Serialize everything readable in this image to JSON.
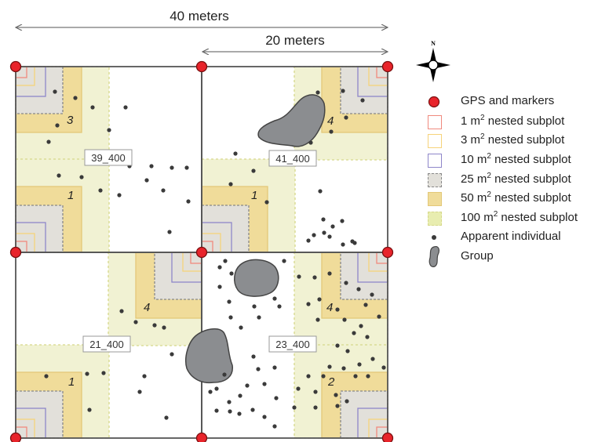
{
  "dimensions": {
    "total_width_label": "40 meters",
    "half_width_label": "20 meters"
  },
  "compass": {
    "north_label": "N"
  },
  "plots": [
    {
      "id": "39_400",
      "numbers": [
        "3",
        "1"
      ]
    },
    {
      "id": "41_400",
      "numbers": [
        "4",
        "1"
      ]
    },
    {
      "id": "21_400",
      "numbers": [
        "4",
        "1"
      ]
    },
    {
      "id": "23_400",
      "numbers": [
        "4",
        "2"
      ]
    }
  ],
  "legend": [
    {
      "key": "gps",
      "text": "GPS and markers",
      "swatch": "circle-red"
    },
    {
      "key": "sub1",
      "pre": "1 m",
      "sup": "2",
      "post": " nested subplot",
      "swatch": "square-red"
    },
    {
      "key": "sub3",
      "pre": "3 m",
      "sup": "2",
      "post": " nested subplot",
      "swatch": "square-yellow"
    },
    {
      "key": "sub10",
      "pre": "10 m",
      "sup": "2",
      "post": " nested subplot",
      "swatch": "square-purple"
    },
    {
      "key": "sub25",
      "pre": "25 m",
      "sup": "2",
      "post": " nested subplot",
      "swatch": "square-gray-dashed"
    },
    {
      "key": "sub50",
      "pre": "50 m",
      "sup": "2",
      "post": " nested subplot",
      "swatch": "square-tan"
    },
    {
      "key": "sub100",
      "pre": "100 m",
      "sup": "2",
      "post": " nested subplot",
      "swatch": "square-green-dashed"
    },
    {
      "key": "individual",
      "text": "Apparent individual",
      "swatch": "dot-dark"
    },
    {
      "key": "group",
      "text": "Group",
      "swatch": "blob-gray"
    }
  ],
  "colors": {
    "marker_red": "#e8242b",
    "sub1": "#f08a7e",
    "sub3": "#f6d37a",
    "sub10": "#8e86c9",
    "sub25": "#e2e0da",
    "sub50": "#f0dc9a",
    "sub100": "#f1f2d3",
    "individual": "#3a3a3a",
    "group": "#8b8d90"
  }
}
